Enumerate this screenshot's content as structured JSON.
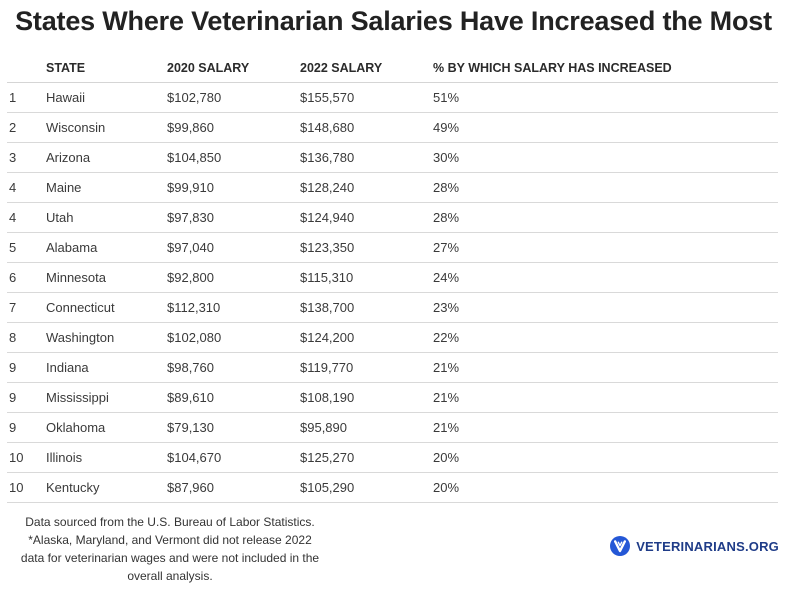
{
  "title": "States Where Veterinarian Salaries Have Increased the Most",
  "columns": [
    "STATE",
    "2020 SALARY",
    "2022 SALARY",
    "% BY WHICH SALARY HAS INCREASED"
  ],
  "rows": [
    [
      "1",
      "Hawaii",
      "$102,780",
      "$155,570",
      "51%"
    ],
    [
      "2",
      "Wisconsin",
      "$99,860",
      "$148,680",
      "49%"
    ],
    [
      "3",
      "Arizona",
      "$104,850",
      "$136,780",
      "30%"
    ],
    [
      "4",
      "Maine",
      "$99,910",
      "$128,240",
      "28%"
    ],
    [
      "4",
      "Utah",
      "$97,830",
      "$124,940",
      "28%"
    ],
    [
      "5",
      "Alabama",
      "$97,040",
      "$123,350",
      "27%"
    ],
    [
      "6",
      "Minnesota",
      "$92,800",
      "$115,310",
      "24%"
    ],
    [
      "7",
      "Connecticut",
      "$112,310",
      "$138,700",
      "23%"
    ],
    [
      "8",
      "Washington",
      "$102,080",
      "$124,200",
      "22%"
    ],
    [
      "9",
      "Indiana",
      "$98,760",
      "$119,770",
      "21%"
    ],
    [
      "9",
      "Mississippi",
      "$89,610",
      "$108,190",
      "21%"
    ],
    [
      "9",
      "Oklahoma",
      "$79,130",
      "$95,890",
      "21%"
    ],
    [
      "10",
      "Illinois",
      "$104,670",
      "$125,270",
      "20%"
    ],
    [
      "10",
      "Kentucky",
      "$87,960",
      "$105,290",
      "20%"
    ]
  ],
  "footnote": {
    "line1": "Data sourced from the U.S. Bureau of Labor Statistics.",
    "line2": "*Alaska, Maryland, and Vermont did not release 2022",
    "line3": "data for veterinarian wages and were not included in the",
    "line4": "overall analysis."
  },
  "brand": {
    "name": "VETERINARIANS.ORG",
    "color": "#1f3c88",
    "icon": "veterinarians-logo-icon"
  },
  "chart_data": {
    "type": "table",
    "title": "States Where Veterinarian Salaries Have Increased the Most",
    "columns": [
      "",
      "STATE",
      "2020 SALARY",
      "2022 SALARY",
      "% BY WHICH SALARY HAS INCREASED"
    ],
    "rows": [
      [
        1,
        "Hawaii",
        102780,
        155570,
        51
      ],
      [
        2,
        "Wisconsin",
        99860,
        148680,
        49
      ],
      [
        3,
        "Arizona",
        104850,
        136780,
        30
      ],
      [
        4,
        "Maine",
        99910,
        128240,
        28
      ],
      [
        4,
        "Utah",
        97830,
        124940,
        28
      ],
      [
        5,
        "Alabama",
        97040,
        123350,
        27
      ],
      [
        6,
        "Minnesota",
        92800,
        115310,
        24
      ],
      [
        7,
        "Connecticut",
        112310,
        138700,
        23
      ],
      [
        8,
        "Washington",
        102080,
        124200,
        22
      ],
      [
        9,
        "Indiana",
        98760,
        119770,
        21
      ],
      [
        9,
        "Mississippi",
        89610,
        108190,
        21
      ],
      [
        9,
        "Oklahoma",
        79130,
        95890,
        21
      ],
      [
        10,
        "Illinois",
        104670,
        125270,
        20
      ],
      [
        10,
        "Kentucky",
        87960,
        105290,
        20
      ]
    ]
  }
}
